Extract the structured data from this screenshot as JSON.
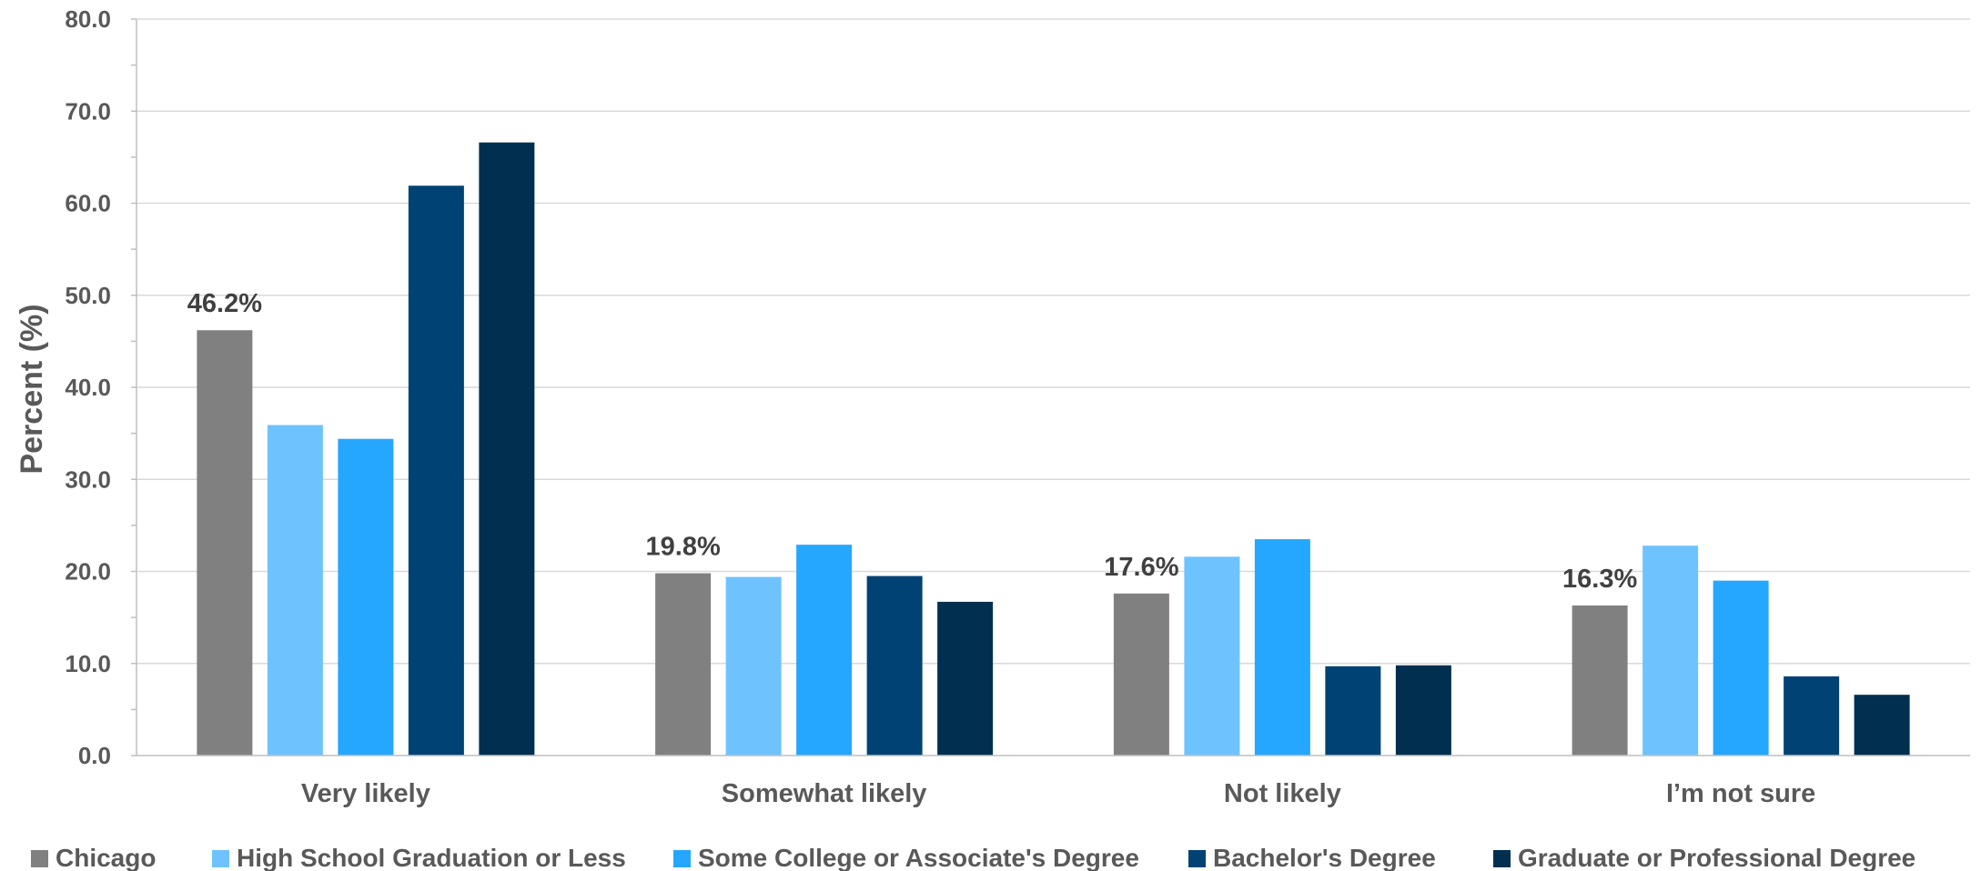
{
  "chart_data": {
    "type": "bar",
    "ylabel": "Percent (%)",
    "xlabel": "",
    "ylim": [
      0,
      80
    ],
    "y_ticks": [
      "0.0",
      "10.0",
      "20.0",
      "30.0",
      "40.0",
      "50.0",
      "60.0",
      "70.0",
      "80.0"
    ],
    "grid": true,
    "legend_position": "bottom",
    "categories": [
      "Very likely",
      "Somewhat likely",
      "Not likely",
      "I’m not sure"
    ],
    "series": [
      {
        "name": "Chicago",
        "color": "#808080",
        "values": [
          46.2,
          19.8,
          17.6,
          16.3
        ]
      },
      {
        "name": "High School Graduation or Less",
        "color": "#6EC3FF",
        "values": [
          35.9,
          19.4,
          21.6,
          22.8
        ]
      },
      {
        "name": "Some College or Associate's Degree",
        "color": "#26A7FF",
        "values": [
          34.4,
          22.9,
          23.5,
          19.0
        ]
      },
      {
        "name": "Bachelor's Degree",
        "color": "#004273",
        "values": [
          61.9,
          19.5,
          9.7,
          8.6
        ]
      },
      {
        "name": "Graduate or Professional Degree",
        "color": "#002F4F",
        "values": [
          66.6,
          16.7,
          9.8,
          6.6
        ]
      }
    ],
    "data_labels": [
      {
        "series": 0,
        "category": 0,
        "text": "46.2%"
      },
      {
        "series": 0,
        "category": 1,
        "text": "19.8%"
      },
      {
        "series": 0,
        "category": 2,
        "text": "17.6%"
      },
      {
        "series": 0,
        "category": 3,
        "text": "16.3%"
      }
    ]
  }
}
